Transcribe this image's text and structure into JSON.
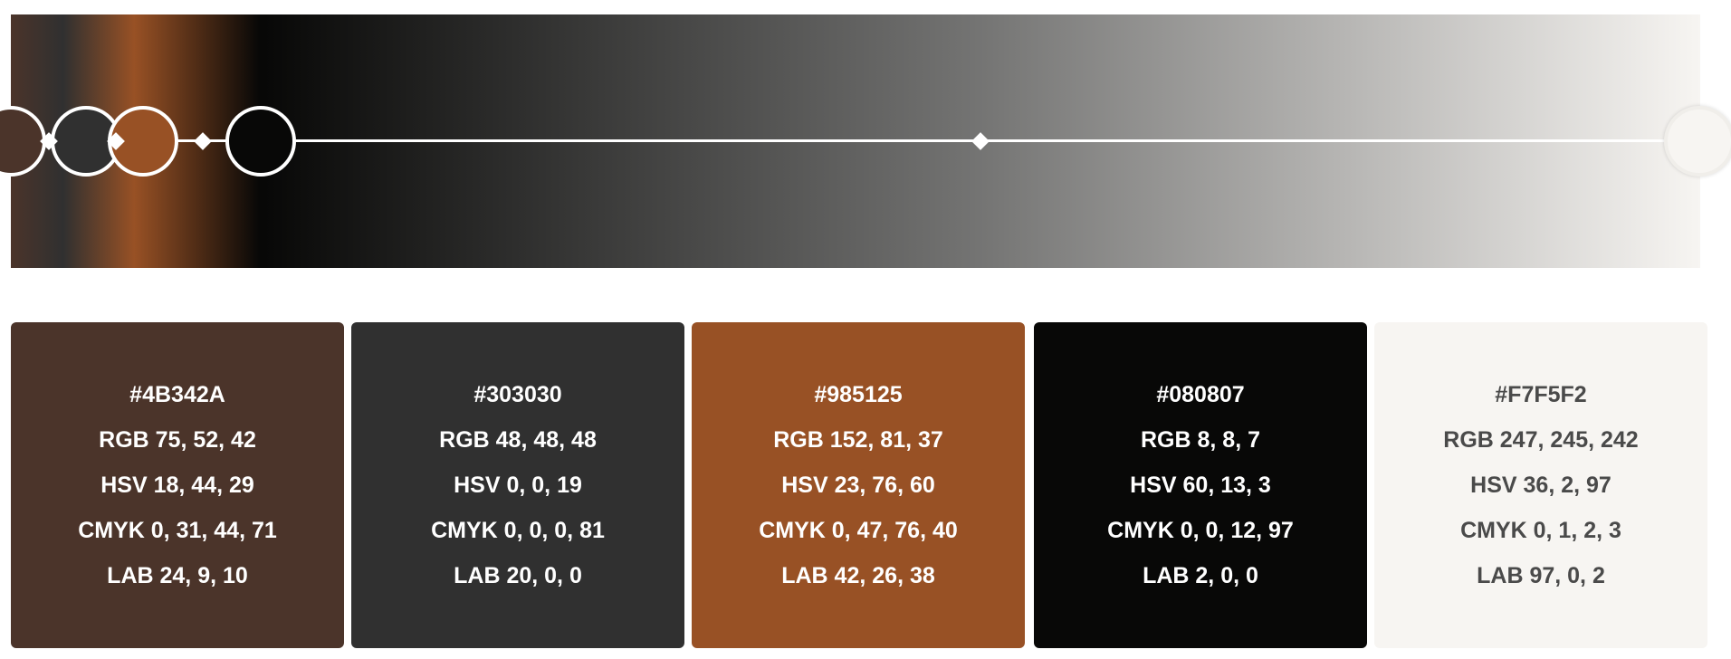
{
  "gradient": {
    "stops": [
      {
        "color": "#4B342A",
        "position": 0.0
      },
      {
        "color": "#303030",
        "position": 0.031
      },
      {
        "color": "#985125",
        "position": 0.073
      },
      {
        "color": "#080807",
        "position": 0.147
      },
      {
        "color": "#F7F5F2",
        "position": 1.0
      }
    ],
    "midpoints": [
      0.017,
      0.061,
      0.112,
      0.568
    ]
  },
  "swatches": [
    {
      "hex": "#4B342A",
      "rgb": "RGB 75, 52, 42",
      "hsv": "HSV 18, 44, 29",
      "cmyk": "CMYK 0, 31, 44, 71",
      "lab": "LAB 24, 9, 10",
      "text_color": "#ffffff"
    },
    {
      "hex": "#303030",
      "rgb": "RGB 48, 48, 48",
      "hsv": "HSV 0, 0, 19",
      "cmyk": "CMYK 0, 0, 0, 81",
      "lab": "LAB 20, 0, 0",
      "text_color": "#ffffff"
    },
    {
      "hex": "#985125",
      "rgb": "RGB 152, 81, 37",
      "hsv": "HSV 23, 76, 60",
      "cmyk": "CMYK 0, 47, 76, 40",
      "lab": "LAB 42, 26, 38",
      "text_color": "#ffffff"
    },
    {
      "hex": "#080807",
      "rgb": "RGB 8, 8, 7",
      "hsv": "HSV 60, 13, 3",
      "cmyk": "CMYK 0, 0, 12, 97",
      "lab": "LAB 2, 0, 0",
      "text_color": "#ffffff"
    },
    {
      "hex": "#F7F5F2",
      "rgb": "RGB 247, 245, 242",
      "hsv": "HSV 36, 2, 97",
      "cmyk": "CMYK 0, 1, 2, 3",
      "lab": "LAB 97, 0, 2",
      "text_color": "#4a4a4a"
    }
  ]
}
